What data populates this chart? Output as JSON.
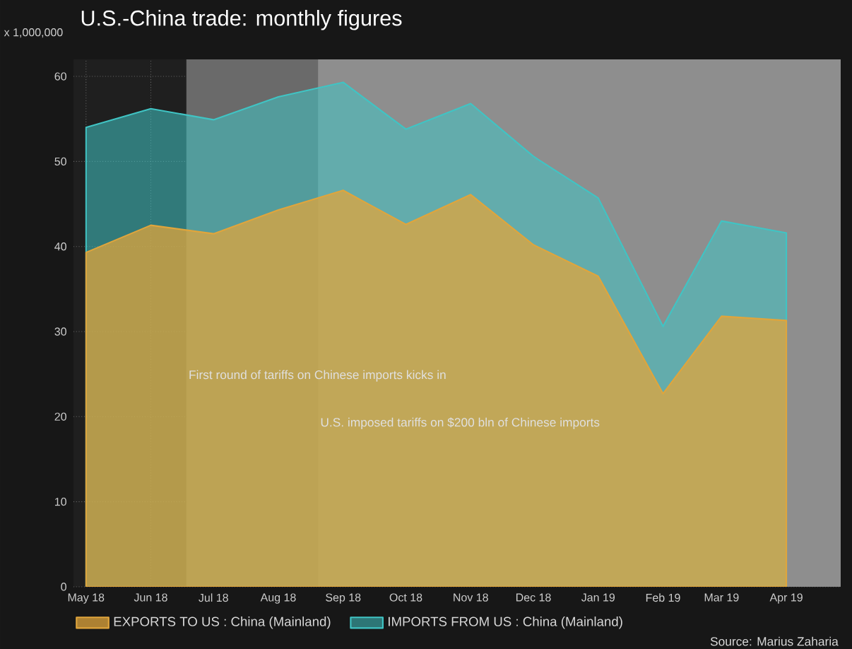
{
  "chart_data": {
    "type": "area",
    "title": "U.S.-China trade: monthly figures",
    "ylabel": "x 1,000,000",
    "x": [
      "2018-05",
      "2018-06",
      "2018-07",
      "2018-08",
      "2018-09",
      "2018-10",
      "2018-11",
      "2018-12",
      "2019-01",
      "2019-02",
      "2019-03",
      "2019-04"
    ],
    "series": [
      {
        "name": "IMPORTS FROM US : China (Mainland)",
        "color": "#40c4c4",
        "values": [
          54.0,
          56.2,
          54.9,
          57.6,
          59.3,
          53.8,
          56.8,
          50.6,
          45.7,
          30.6,
          43.0,
          41.6
        ]
      },
      {
        "name": "EXPORTS TO US : China (Mainland)",
        "color": "#e0a53c",
        "values": [
          39.3,
          42.5,
          41.5,
          44.3,
          46.6,
          42.6,
          46.1,
          40.2,
          36.5,
          22.7,
          31.8,
          31.3
        ]
      }
    ],
    "xlim": [
      "2018-04-25",
      "2019-04-27"
    ],
    "xticks": [
      {
        "value": "2018-05",
        "label": "May 18"
      },
      {
        "value": "2018-06",
        "label": "Jun 18"
      },
      {
        "value": "2018-07",
        "label": "Jul 18"
      },
      {
        "value": "2018-08",
        "label": "Aug 18"
      },
      {
        "value": "2018-09",
        "label": "Sep 18"
      },
      {
        "value": "2018-10",
        "label": "Oct 18"
      },
      {
        "value": "2018-11",
        "label": "Nov 18"
      },
      {
        "value": "2018-12",
        "label": "Dec 18"
      },
      {
        "value": "2019-01",
        "label": "Jan 19"
      },
      {
        "value": "2019-02",
        "label": "Feb 19"
      },
      {
        "value": "2019-03",
        "label": "Mar 19"
      },
      {
        "value": "2019-04",
        "label": "Apr 19"
      }
    ],
    "ylim": [
      0,
      62
    ],
    "yticks": [
      0,
      10,
      20,
      30,
      40,
      50,
      60
    ],
    "bands": [
      {
        "axis": "x",
        "from": "2018-06-18",
        "to": "2019-04-27",
        "label": "First round of tariffs on Chinese imports kicks in",
        "color": "#6a6a6a"
      },
      {
        "axis": "x",
        "from": "2018-08-20",
        "to": "2019-04-27",
        "label": "U.S. imposed tariffs on $200 bln of Chinese imports",
        "color": "#8e8e8e"
      }
    ],
    "grid": true,
    "legend": "bottom",
    "marker": "none",
    "annotations": [
      "Source: Marius Zaharia"
    ]
  }
}
